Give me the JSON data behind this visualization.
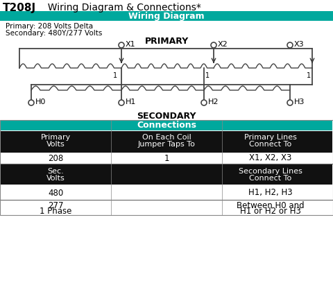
{
  "title": "T208J",
  "title_sub": "  Wiring Diagram & Connections*",
  "teal_color": "#00A89D",
  "black_color": "#1a1a1a",
  "white_color": "#ffffff",
  "bg_color": "#ffffff",
  "gray_color": "#555555",
  "header_wiring": "Wiring Diagram",
  "header_connections": "Connections",
  "primary_label": "Primary: 208 Volts Delta",
  "secondary_label": "Secondary: 480Y/277 Volts",
  "primary_title": "PRIMARY",
  "secondary_title": "SECONDARY",
  "col_headers_line1": [
    "Primary",
    "On Each Coil",
    "Primary Lines"
  ],
  "col_headers_line2": [
    "Volts",
    "Jumper Taps To",
    "Connect To"
  ],
  "row1": [
    "208",
    "1",
    "X1, X2, X3"
  ],
  "sec_headers_line1": [
    "Sec.",
    "",
    "Secondary Lines"
  ],
  "sec_headers_line2": [
    "Volts",
    "",
    "Connect To"
  ],
  "row2": [
    "480",
    "",
    "H1, H2, H3"
  ],
  "row3a": [
    "277",
    "",
    "Between H0 and"
  ],
  "row3b": [
    "1 Phase",
    "",
    "H1 or H2 or H3"
  ],
  "x_terminals": [
    "X1",
    "X2",
    "X3"
  ],
  "h_terminals": [
    "H0",
    "H1",
    "H2",
    "H3"
  ]
}
